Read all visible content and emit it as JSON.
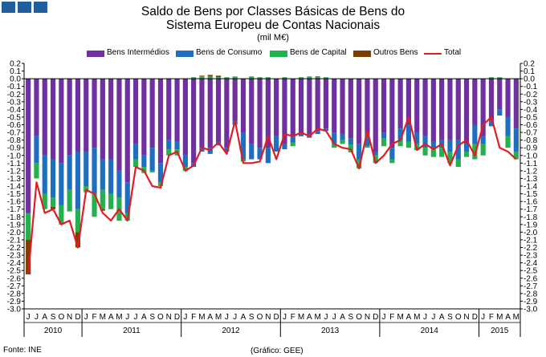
{
  "header": {
    "title_line1": "Saldo de Bens por Classes Básicas de Bens do",
    "title_line2": "Sistema Europeu de Contas Nacionais",
    "unit": "(mil M€)"
  },
  "footer": {
    "source": "Fonte: INE",
    "credit": "(Gráfico: GEE)"
  },
  "colors": {
    "logo": "#1f5fa0"
  },
  "chart_data": {
    "type": "bar",
    "stacked": true,
    "ylim": [
      -3.0,
      0.2
    ],
    "ytick_step": 0.1,
    "y_axes": "both-sides",
    "grid": false,
    "legend_position": "top",
    "months": [
      "J",
      "J",
      "A",
      "S",
      "O",
      "N",
      "D",
      "J",
      "F",
      "M",
      "A",
      "M",
      "J",
      "J",
      "A",
      "S",
      "O",
      "N",
      "D",
      "J",
      "F",
      "M",
      "A",
      "M",
      "J",
      "J",
      "A",
      "S",
      "O",
      "N",
      "D",
      "J",
      "F",
      "M",
      "A",
      "M",
      "J",
      "J",
      "A",
      "S",
      "O",
      "N",
      "D",
      "J",
      "F",
      "M",
      "A",
      "M",
      "J",
      "J",
      "A",
      "S",
      "O",
      "N",
      "D",
      "J",
      "F",
      "M",
      "A",
      "M"
    ],
    "year_groups": [
      {
        "label": "2010",
        "count": 7
      },
      {
        "label": "2011",
        "count": 12
      },
      {
        "label": "2012",
        "count": 12
      },
      {
        "label": "2013",
        "count": 12
      },
      {
        "label": "2014",
        "count": 12
      },
      {
        "label": "2015",
        "count": 5
      }
    ],
    "series": [
      {
        "name": "Bens Intermédios",
        "color": "#7030a0",
        "type": "bar",
        "values": [
          -1.75,
          -0.75,
          -1.0,
          -1.05,
          -1.1,
          -1.0,
          -0.95,
          -0.95,
          -0.9,
          -1.05,
          -1.05,
          -1.2,
          -1.35,
          -0.85,
          -1.0,
          -0.9,
          -1.1,
          -0.8,
          -0.82,
          -1.0,
          -1.1,
          -0.9,
          -0.9,
          -0.82,
          -0.9,
          -0.55,
          -0.7,
          -0.85,
          -0.9,
          -0.9,
          -0.75,
          -0.85,
          -0.75,
          -0.7,
          -0.72,
          -0.68,
          -0.65,
          -0.7,
          -0.72,
          -0.78,
          -0.85,
          -0.7,
          -0.95,
          -0.7,
          -0.9,
          -0.65,
          -0.6,
          -0.7,
          -0.75,
          -0.82,
          -0.8,
          -0.8,
          -0.8,
          -0.85,
          -0.6,
          -0.75,
          -0.55,
          -0.4,
          -0.5,
          -0.65
        ]
      },
      {
        "name": "Bens de Consumo",
        "color": "#1f6fc0",
        "type": "bar",
        "values": [
          0.0,
          -0.35,
          -0.5,
          -0.5,
          -0.55,
          -0.45,
          -0.75,
          -0.45,
          -0.6,
          -0.4,
          -0.45,
          -0.35,
          -0.4,
          -0.2,
          -0.15,
          -0.3,
          -0.25,
          -0.12,
          -0.1,
          -0.15,
          -0.05,
          -0.05,
          -0.08,
          -0.05,
          -0.05,
          -0.05,
          -0.35,
          -0.2,
          -0.15,
          -0.2,
          -0.2,
          -0.07,
          -0.08,
          -0.05,
          -0.05,
          -0.04,
          -0.03,
          -0.15,
          -0.08,
          -0.08,
          -0.2,
          -0.18,
          -0.05,
          -0.08,
          -0.15,
          -0.15,
          -0.22,
          -0.15,
          -0.15,
          -0.1,
          -0.1,
          -0.15,
          -0.25,
          -0.1,
          -0.25,
          -0.1,
          -0.07,
          -0.08,
          -0.25,
          -0.3
        ]
      },
      {
        "name": "Bens de Capital",
        "color": "#22b14c",
        "type": "bar",
        "values": [
          -0.35,
          -0.2,
          -0.2,
          -0.12,
          -0.25,
          -0.28,
          -0.3,
          -0.08,
          -0.3,
          -0.25,
          -0.2,
          -0.3,
          -0.1,
          -0.1,
          -0.08,
          -0.02,
          -0.05,
          -0.08,
          -0.08,
          -0.05,
          0.02,
          0.03,
          0.03,
          0.02,
          0.02,
          0.03,
          -0.03,
          0.03,
          0.02,
          0.02,
          0.0,
          0.02,
          -0.05,
          0.02,
          0.03,
          0.02,
          0.02,
          -0.05,
          -0.05,
          -0.1,
          -0.12,
          -0.02,
          -0.1,
          -0.1,
          -0.05,
          -0.08,
          -0.08,
          -0.08,
          -0.1,
          -0.1,
          -0.12,
          -0.15,
          -0.1,
          -0.07,
          -0.2,
          -0.15,
          0.02,
          0.02,
          -0.15,
          -0.1
        ]
      },
      {
        "name": "Outros Bens",
        "color": "#7b3f00",
        "type": "bar",
        "values": [
          -0.45,
          0.0,
          0.0,
          -0.03,
          0.0,
          0.0,
          -0.2,
          0.0,
          0.0,
          -0.02,
          0.0,
          0.0,
          0.0,
          0.0,
          0.0,
          0.0,
          0.0,
          0.0,
          0.0,
          0.0,
          0.0,
          0.01,
          0.02,
          0.02,
          0.0,
          0.0,
          0.0,
          0.0,
          0.0,
          0.0,
          0.0,
          0.0,
          0.0,
          0.0,
          0.0,
          0.01,
          0.0,
          0.0,
          0.0,
          0.0,
          0.0,
          0.0,
          0.0,
          0.0,
          0.0,
          0.0,
          0.0,
          0.0,
          0.0,
          0.0,
          0.0,
          0.0,
          0.0,
          0.0,
          0.0,
          0.0,
          0.0,
          0.0,
          0.0,
          0.0
        ]
      },
      {
        "name": "Total",
        "color": "#e31b23",
        "type": "line",
        "values": [
          -2.55,
          -1.35,
          -1.75,
          -1.7,
          -1.9,
          -1.85,
          -2.2,
          -1.45,
          -1.5,
          -1.75,
          -1.85,
          -1.7,
          -1.85,
          -1.15,
          -1.2,
          -1.4,
          -1.42,
          -1.0,
          -0.95,
          -1.2,
          -1.13,
          -0.9,
          -0.93,
          -0.83,
          -0.98,
          -0.55,
          -1.1,
          -1.1,
          -1.08,
          -0.75,
          -1.05,
          -0.72,
          -0.75,
          -0.7,
          -0.75,
          -0.65,
          -0.68,
          -0.85,
          -0.9,
          -0.92,
          -1.17,
          -0.68,
          -1.1,
          -1.0,
          -0.85,
          -0.8,
          -0.5,
          -0.93,
          -0.85,
          -0.92,
          -0.85,
          -1.13,
          -0.87,
          -0.8,
          -1.0,
          -0.6,
          -0.5,
          -0.9,
          -0.95,
          -1.05
        ]
      }
    ]
  }
}
